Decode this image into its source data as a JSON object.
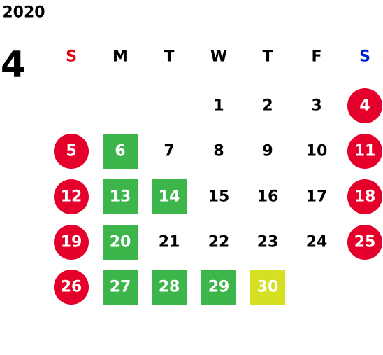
{
  "year": "2020",
  "month": "4",
  "weekdays": [
    {
      "label": "S",
      "color": "#e60012"
    },
    {
      "label": "M",
      "color": "#000000"
    },
    {
      "label": "T",
      "color": "#000000"
    },
    {
      "label": "W",
      "color": "#000000"
    },
    {
      "label": "T",
      "color": "#000000"
    },
    {
      "label": "F",
      "color": "#000000"
    },
    {
      "label": "S",
      "color": "#0020d0"
    }
  ],
  "weeks": [
    [
      null,
      null,
      null,
      {
        "day": "1"
      },
      {
        "day": "2"
      },
      {
        "day": "3"
      },
      {
        "day": "4",
        "shape": "circle",
        "fill": "#e4002b"
      }
    ],
    [
      {
        "day": "5",
        "shape": "circle",
        "fill": "#e4002b"
      },
      {
        "day": "6",
        "shape": "square",
        "fill": "#3cb54a"
      },
      {
        "day": "7"
      },
      {
        "day": "8"
      },
      {
        "day": "9"
      },
      {
        "day": "10"
      },
      {
        "day": "11",
        "shape": "circle",
        "fill": "#e4002b"
      }
    ],
    [
      {
        "day": "12",
        "shape": "circle",
        "fill": "#e4002b"
      },
      {
        "day": "13",
        "shape": "square",
        "fill": "#3cb54a"
      },
      {
        "day": "14",
        "shape": "square",
        "fill": "#3cb54a"
      },
      {
        "day": "15"
      },
      {
        "day": "16"
      },
      {
        "day": "17"
      },
      {
        "day": "18",
        "shape": "circle",
        "fill": "#e4002b"
      }
    ],
    [
      {
        "day": "19",
        "shape": "circle",
        "fill": "#e4002b"
      },
      {
        "day": "20",
        "shape": "square",
        "fill": "#3cb54a"
      },
      {
        "day": "21"
      },
      {
        "day": "22"
      },
      {
        "day": "23"
      },
      {
        "day": "24"
      },
      {
        "day": "25",
        "shape": "circle",
        "fill": "#e4002b"
      }
    ],
    [
      {
        "day": "26",
        "shape": "circle",
        "fill": "#e4002b"
      },
      {
        "day": "27",
        "shape": "square",
        "fill": "#3cb54a"
      },
      {
        "day": "28",
        "shape": "square",
        "fill": "#3cb54a"
      },
      {
        "day": "29",
        "shape": "square",
        "fill": "#3cb54a"
      },
      {
        "day": "30",
        "shape": "square",
        "fill": "#d4e021"
      },
      null,
      null
    ]
  ]
}
